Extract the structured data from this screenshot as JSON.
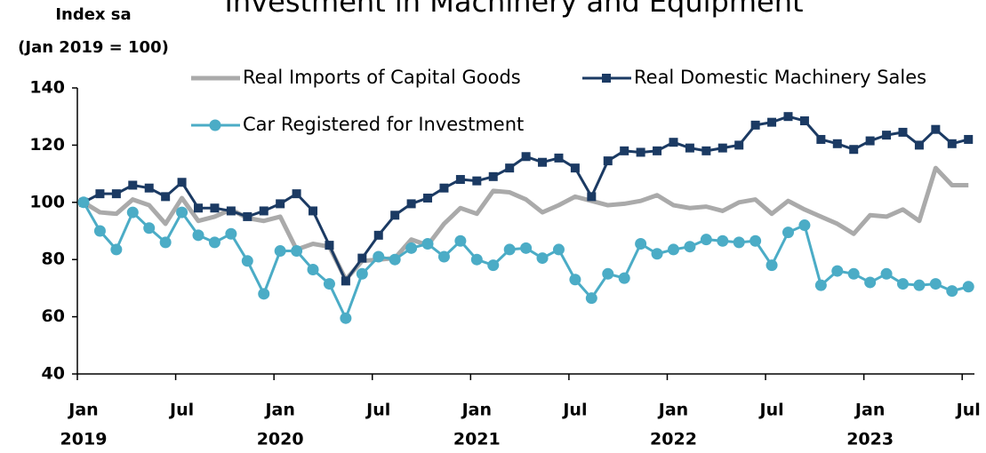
{
  "chart_data": {
    "type": "line",
    "title": "Investment in Machinery and Equipment",
    "y_label_lines": [
      "Index sa",
      "(Jan 2019 = 100)"
    ],
    "categories": [
      "Jan",
      null,
      null,
      null,
      null,
      null,
      "Jul",
      null,
      null,
      null,
      null,
      null,
      "Jan",
      null,
      null,
      null,
      null,
      null,
      "Jul",
      null,
      null,
      null,
      null,
      null,
      "Jan",
      null,
      null,
      null,
      null,
      null,
      "Jul",
      null,
      null,
      null,
      null,
      null,
      "Jan",
      null,
      null,
      null,
      null,
      null,
      "Jul",
      null,
      null,
      null,
      null,
      null,
      "Jan",
      null,
      null,
      null,
      null,
      null,
      "Jul"
    ],
    "category_years": [
      "2019",
      null,
      null,
      null,
      null,
      null,
      null,
      null,
      null,
      null,
      null,
      null,
      "2020",
      null,
      null,
      null,
      null,
      null,
      null,
      null,
      null,
      null,
      null,
      null,
      "2021",
      null,
      null,
      null,
      null,
      null,
      null,
      null,
      null,
      null,
      null,
      null,
      "2022",
      null,
      null,
      null,
      null,
      null,
      null,
      null,
      null,
      null,
      null,
      null,
      "2023",
      null,
      null,
      null,
      null,
      null,
      null
    ],
    "ylim": [
      40,
      140
    ],
    "yticks": [
      40,
      60,
      80,
      100,
      120,
      140
    ],
    "grid": false,
    "series": [
      {
        "name": "Real Imports of Capital Goods",
        "color": "#aaaaaa",
        "marker": false,
        "values": [
          100,
          96.5,
          96,
          101,
          99,
          92.5,
          101.5,
          93.5,
          95,
          97.5,
          94.5,
          93.5,
          95,
          83.5,
          85.5,
          84.5,
          73,
          79.5,
          80,
          80.5,
          87,
          85,
          92.5,
          98,
          96,
          104,
          103.5,
          101,
          96.5,
          99,
          102,
          100.5,
          99,
          99.5,
          100.5,
          102.5,
          99,
          98,
          98.5,
          97,
          100,
          101,
          96,
          100.5,
          97.5,
          95,
          92.5,
          89,
          95.5,
          95,
          97.5,
          93.5,
          112,
          106,
          106
        ]
      },
      {
        "name": "Real Domestic Machinery Sales",
        "color": "#1b3a63",
        "marker": "square",
        "values": [
          100,
          103,
          103,
          106,
          105,
          102,
          107,
          98,
          98,
          97,
          95,
          97,
          99.5,
          103,
          97,
          85,
          72.5,
          80.5,
          88.5,
          95.5,
          99.5,
          101.5,
          105,
          108,
          107.5,
          109,
          112,
          116,
          114,
          115.5,
          112,
          102,
          114.5,
          118,
          117.5,
          118,
          121,
          119,
          118,
          119,
          120,
          127,
          128,
          130,
          128.5,
          122,
          120.5,
          118.5,
          121.5,
          123.5,
          124.5,
          120,
          125.5,
          120.5,
          122
        ]
      },
      {
        "name": "Car Registered for Investment",
        "color": "#4bacc6",
        "marker": "circle",
        "values": [
          100,
          90,
          83.5,
          96.5,
          91,
          86,
          96.5,
          88.5,
          86,
          89,
          79.5,
          68,
          83,
          83,
          76.5,
          71.5,
          59.5,
          75,
          81,
          80,
          84,
          85.5,
          81,
          86.5,
          80,
          78,
          83.5,
          84,
          80.5,
          83.5,
          73,
          66.5,
          75,
          73.5,
          85.5,
          82,
          83.5,
          84.5,
          87,
          86.5,
          86,
          86.5,
          78,
          89.5,
          92,
          71,
          76,
          75,
          72,
          75,
          71.5,
          71,
          71.5,
          69,
          70.5
        ]
      }
    ]
  }
}
